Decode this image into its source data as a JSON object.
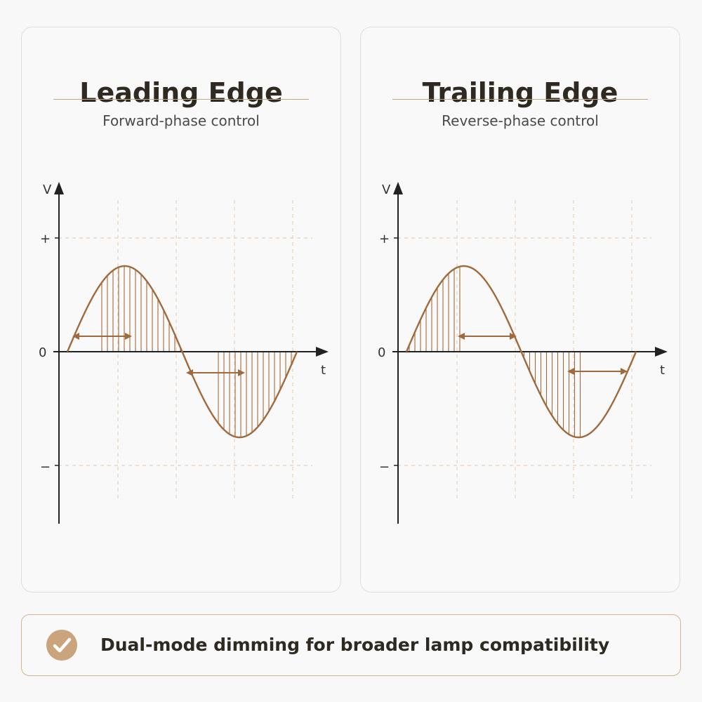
{
  "panels": [
    {
      "title": "Leading Edge",
      "subtitle": "Forward-phase control",
      "axis": {
        "y_label": "V",
        "x_label": "t",
        "plus": "+",
        "zero": "0",
        "minus": "−"
      },
      "mode": "leading"
    },
    {
      "title": "Trailing Edge",
      "subtitle": "Reverse-phase control",
      "axis": {
        "y_label": "V",
        "x_label": "t",
        "plus": "+",
        "zero": "0",
        "minus": "−"
      },
      "mode": "trailing"
    }
  ],
  "footer": {
    "text": "Dual-mode dimming for broader lamp compatibility",
    "icon": "check-circle-icon"
  },
  "colors": {
    "accent": "#a06a3c",
    "divider": "#c9a47c",
    "grid": "#e6d2bc",
    "axis": "#222222"
  }
}
